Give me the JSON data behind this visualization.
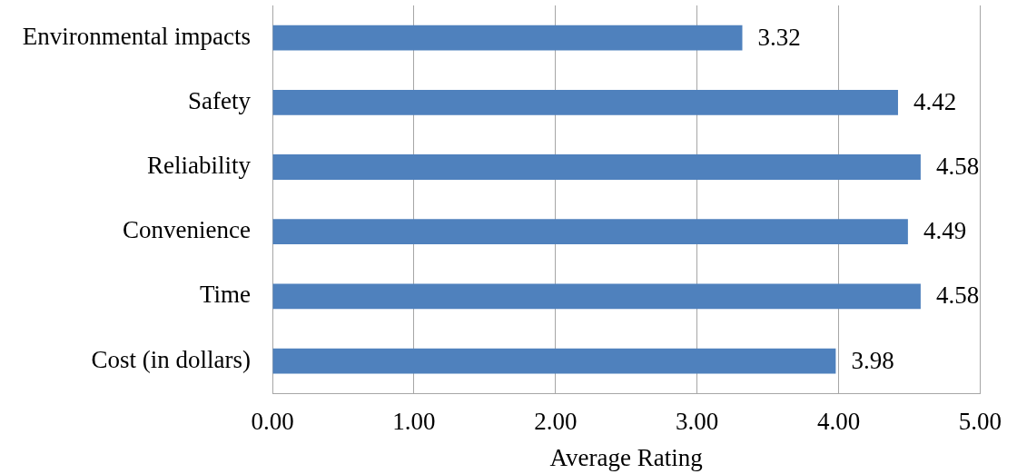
{
  "chart_data": {
    "type": "bar",
    "orientation": "horizontal",
    "categories": [
      "Environmental impacts",
      "Safety",
      "Reliability",
      "Convenience",
      "Time",
      "Cost (in dollars)"
    ],
    "values": [
      3.32,
      4.42,
      4.58,
      4.49,
      4.58,
      3.98
    ],
    "color": "#4f81bd",
    "xlim": [
      0,
      5
    ],
    "xticks": [
      {
        "value": 0,
        "label": "0.00"
      },
      {
        "value": 1,
        "label": "1.00"
      },
      {
        "value": 2,
        "label": "2.00"
      },
      {
        "value": 3,
        "label": "3.00"
      },
      {
        "value": 4,
        "label": "4.00"
      },
      {
        "value": 5,
        "label": "5.00"
      }
    ],
    "xlabel": "Average Rating",
    "grid": "x",
    "data_labels": true
  }
}
